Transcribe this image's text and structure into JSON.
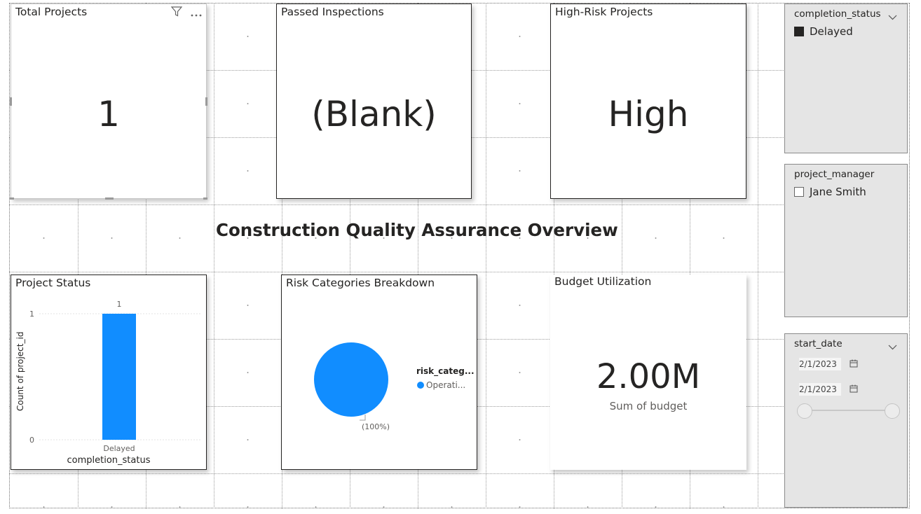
{
  "report_title": "Construction Quality Assurance Overview",
  "cards": {
    "total_projects": {
      "title": "Total Projects",
      "value": "1"
    },
    "passed_inspections": {
      "title": "Passed Inspections",
      "value": "(Blank)"
    },
    "high_risk": {
      "title": "High-Risk Projects",
      "value": "High"
    },
    "budget": {
      "title": "Budget Utilization",
      "value": "2.00M",
      "caption": "Sum of budget"
    }
  },
  "project_status": {
    "title": "Project Status"
  },
  "risk_breakdown": {
    "title": "Risk Categories Breakdown",
    "legend_title": "risk_categ...",
    "legend_item": "Operati...",
    "slice_label": "(100%)"
  },
  "slicers": {
    "completion_status": {
      "header": "completion_status",
      "option": "Delayed",
      "checked": true
    },
    "project_manager": {
      "header": "project_manager",
      "option": "Jane Smith",
      "checked": false
    },
    "start_date": {
      "header": "start_date",
      "from": "2/1/2023",
      "to": "2/1/2023"
    }
  },
  "colors": {
    "accent": "#118DFF",
    "text": "#252423",
    "slicer_bg": "#E5E5E5"
  },
  "chart_data": [
    {
      "type": "bar",
      "title": "Project Status",
      "categories": [
        "Delayed"
      ],
      "values": [
        1
      ],
      "data_labels": [
        "1"
      ],
      "xlabel": "completion_status",
      "ylabel": "Count of project_id",
      "yticks": [
        "0",
        "1"
      ],
      "ylim": [
        0,
        1
      ],
      "grid": true
    },
    {
      "type": "pie",
      "title": "Risk Categories Breakdown",
      "legend_title": "risk_categ...",
      "slices": [
        {
          "label": "Operati...",
          "value": 100,
          "data_label": "(100%)"
        }
      ]
    }
  ]
}
